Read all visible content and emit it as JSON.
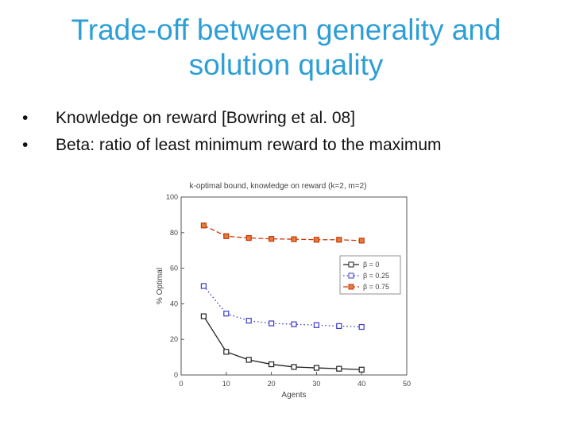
{
  "slide": {
    "title_line1": "Trade-off between generality and",
    "title_line2": "solution quality",
    "bullets": [
      "Knowledge on reward [Bowring et al. 08]",
      "Beta: ratio of least minimum reward to the maximum"
    ],
    "bullet_glyph": "•"
  },
  "chart_data": {
    "type": "line",
    "title": "k-optimal bound, knowledge on reward (k=2, m=2)",
    "xlabel": "Agents",
    "ylabel": "% Optimal",
    "xlim": [
      0,
      50
    ],
    "ylim": [
      0,
      100
    ],
    "xticks": [
      0,
      10,
      20,
      30,
      40,
      50
    ],
    "yticks": [
      0,
      20,
      40,
      60,
      80,
      100
    ],
    "x": [
      5,
      10,
      15,
      20,
      25,
      30,
      35,
      40
    ],
    "series": [
      {
        "name": "β = 0",
        "color": "#222222",
        "dash": "solid",
        "values": [
          33,
          13,
          8.5,
          6,
          4.5,
          4,
          3.5,
          3
        ]
      },
      {
        "name": "β = 0.25",
        "color": "#3a3ac8",
        "dash": "dotted",
        "values": [
          50,
          34.5,
          30.5,
          29,
          28.5,
          28,
          27.5,
          27
        ]
      },
      {
        "name": "β = 0.75",
        "color": "#cc3300",
        "dash": "dashed",
        "values": [
          84,
          78,
          77,
          76.5,
          76.3,
          76,
          76,
          75.5
        ]
      }
    ],
    "legend": "right"
  }
}
